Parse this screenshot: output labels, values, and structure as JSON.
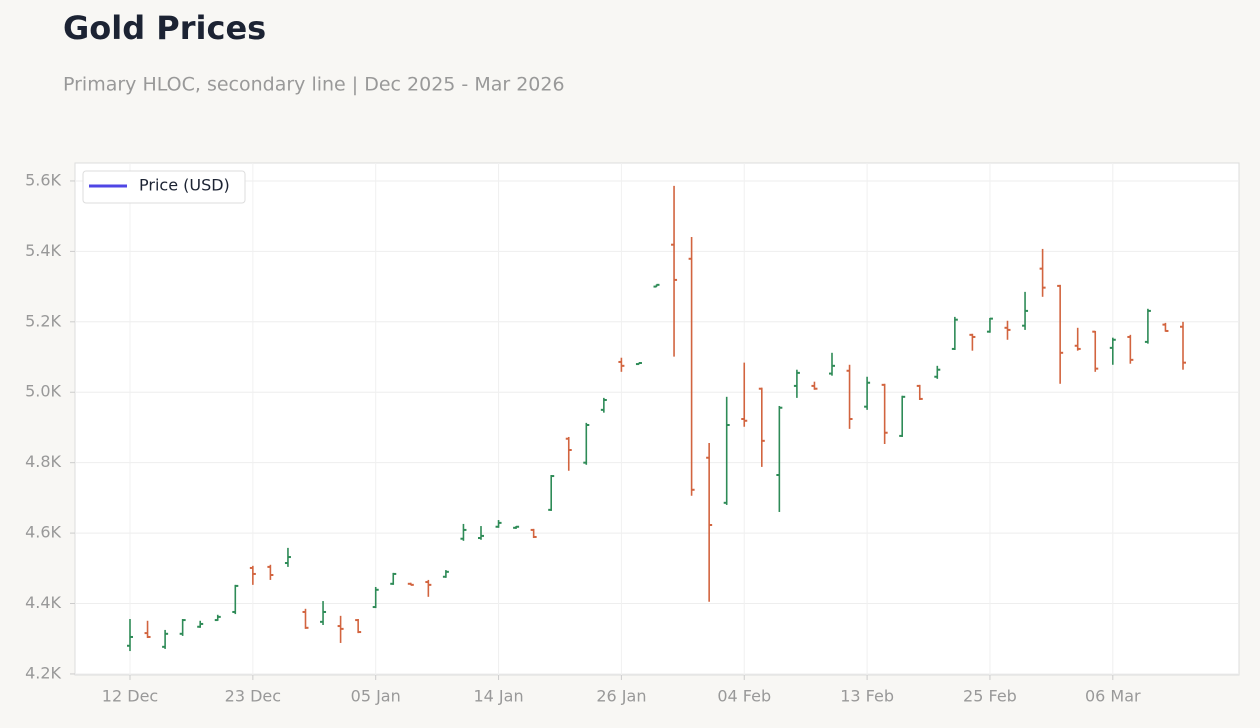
{
  "chart_data": {
    "type": "ohlc",
    "title": "Gold Prices",
    "subtitle": "Primary HLOC, secondary line | Dec 2025 - Mar 2026",
    "categories": [
      "12 Dec",
      null,
      null,
      null,
      null,
      null,
      null,
      "23 Dec",
      null,
      null,
      null,
      null,
      null,
      null,
      "05 Jan",
      null,
      null,
      null,
      null,
      null,
      null,
      "14 Jan",
      null,
      null,
      null,
      null,
      null,
      null,
      "26 Jan",
      null,
      null,
      null,
      null,
      null,
      null,
      "04 Feb",
      null,
      null,
      null,
      null,
      null,
      null,
      "13 Feb",
      null,
      null,
      null,
      null,
      null,
      null,
      "25 Feb",
      null,
      null,
      null,
      null,
      null,
      null,
      "06 Mar",
      null,
      null,
      null,
      null
    ],
    "open": [
      4280,
      4316,
      4277,
      4314,
      4334,
      4353,
      4376,
      4501,
      4504,
      4515,
      4376,
      4348,
      4336,
      4353,
      4390,
      4456,
      4456,
      4461,
      4476,
      4584,
      4586,
      4618,
      4615,
      4609,
      4666,
      4868,
      4800,
      4950,
      5086,
      5080,
      5300,
      5419,
      5379,
      4814,
      4686,
      4924,
      5010,
      4765,
      5018,
      5018,
      5053,
      5061,
      4959,
      5021,
      4876,
      5018,
      5044,
      5123,
      5163,
      5172,
      5183,
      5189,
      5351,
      5302,
      5132,
      5172,
      5126,
      5157,
      5143,
      5192,
      5186
    ],
    "high": [
      4356,
      4351,
      4325,
      4356,
      4351,
      4368,
      4453,
      4507,
      4510,
      4558,
      4385,
      4407,
      4365,
      4356,
      4447,
      4487,
      4459,
      4467,
      4495,
      4626,
      4620,
      4637,
      4620,
      4612,
      4765,
      4873,
      4913,
      4984,
      5098,
      5084,
      5306,
      5586,
      5441,
      4856,
      4987,
      5084,
      5013,
      4961,
      5064,
      5030,
      5112,
      5078,
      5044,
      5024,
      4990,
      5021,
      5075,
      5214,
      5166,
      5211,
      5203,
      5285,
      5407,
      5305,
      5183,
      5174,
      5155,
      5163,
      5237,
      5197,
      5200
    ],
    "low": [
      4265,
      4302,
      4271,
      4308,
      4331,
      4351,
      4370,
      4453,
      4467,
      4504,
      4328,
      4339,
      4288,
      4316,
      4387,
      4453,
      4452,
      4419,
      4473,
      4578,
      4581,
      4615,
      4612,
      4586,
      4663,
      4777,
      4794,
      4942,
      5058,
      5079,
      5299,
      5101,
      4706,
      4405,
      4680,
      4902,
      4788,
      4660,
      4984,
      5007,
      5047,
      4896,
      4950,
      4853,
      4873,
      4978,
      5038,
      5120,
      5118,
      5169,
      5149,
      5177,
      5271,
      5024,
      5118,
      5058,
      5078,
      5081,
      5138,
      5172,
      5064
    ],
    "close": [
      4305,
      4305,
      4314,
      4353,
      4342,
      4362,
      4450,
      4484,
      4481,
      4532,
      4331,
      4376,
      4328,
      4319,
      4439,
      4484,
      4453,
      4453,
      4490,
      4609,
      4592,
      4629,
      4618,
      4589,
      4762,
      4836,
      4907,
      4978,
      5075,
      5083,
      5305,
      5319,
      4723,
      4623,
      4907,
      4919,
      4862,
      4956,
      5055,
      5010,
      5075,
      4924,
      5027,
      4885,
      4987,
      4981,
      5064,
      5206,
      5157,
      5209,
      5177,
      5231,
      5297,
      5112,
      5123,
      5067,
      5149,
      5092,
      5231,
      5174,
      5084
    ],
    "up_color": "#2e8b57",
    "down_color": "#d2643f",
    "series": [
      {
        "name": "Price (USD)",
        "color": "#4f46e5"
      }
    ],
    "ylim": [
      4197,
      5651
    ],
    "yticks": [
      {
        "value": 4200,
        "label": "4.2K"
      },
      {
        "value": 4400,
        "label": "4.4K"
      },
      {
        "value": 4600,
        "label": "4.6K"
      },
      {
        "value": 4800,
        "label": "4.8K"
      },
      {
        "value": 5000,
        "label": "5.0K"
      },
      {
        "value": 5200,
        "label": "5.2K"
      },
      {
        "value": 5400,
        "label": "5.4K"
      },
      {
        "value": 5600,
        "label": "5.6K"
      }
    ],
    "grid": true
  }
}
